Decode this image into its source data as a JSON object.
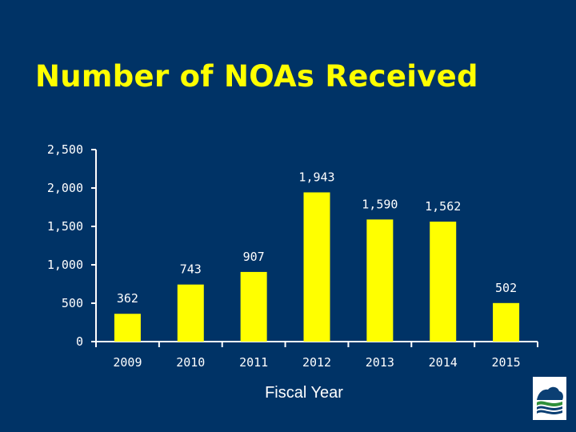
{
  "slide": {
    "title": "Number of NOAs Received"
  },
  "chart_data": {
    "type": "bar",
    "title": "Number of NOAs Received",
    "xlabel": "Fiscal Year",
    "ylabel": "",
    "categories": [
      "2009",
      "2010",
      "2011",
      "2012",
      "2013",
      "2014",
      "2015"
    ],
    "values": [
      362,
      743,
      907,
      1943,
      1590,
      1562,
      502
    ],
    "data_labels": [
      "362",
      "743",
      "907",
      "1,943",
      "1,590",
      "1,562",
      "502"
    ],
    "ylim": [
      0,
      2500
    ],
    "yticks": [
      0,
      500,
      1000,
      1500,
      2000,
      2500
    ],
    "ytick_labels": [
      "0",
      "500",
      "1,000",
      "1,500",
      "2,000",
      "2,500"
    ],
    "grid": false,
    "legend": "none",
    "bar_color": "#ffff00",
    "axis_color": "#ffffff",
    "text_color": "#ffffff",
    "background_color": "#003366"
  },
  "logo": {
    "icon": "agency-seal-icon"
  }
}
